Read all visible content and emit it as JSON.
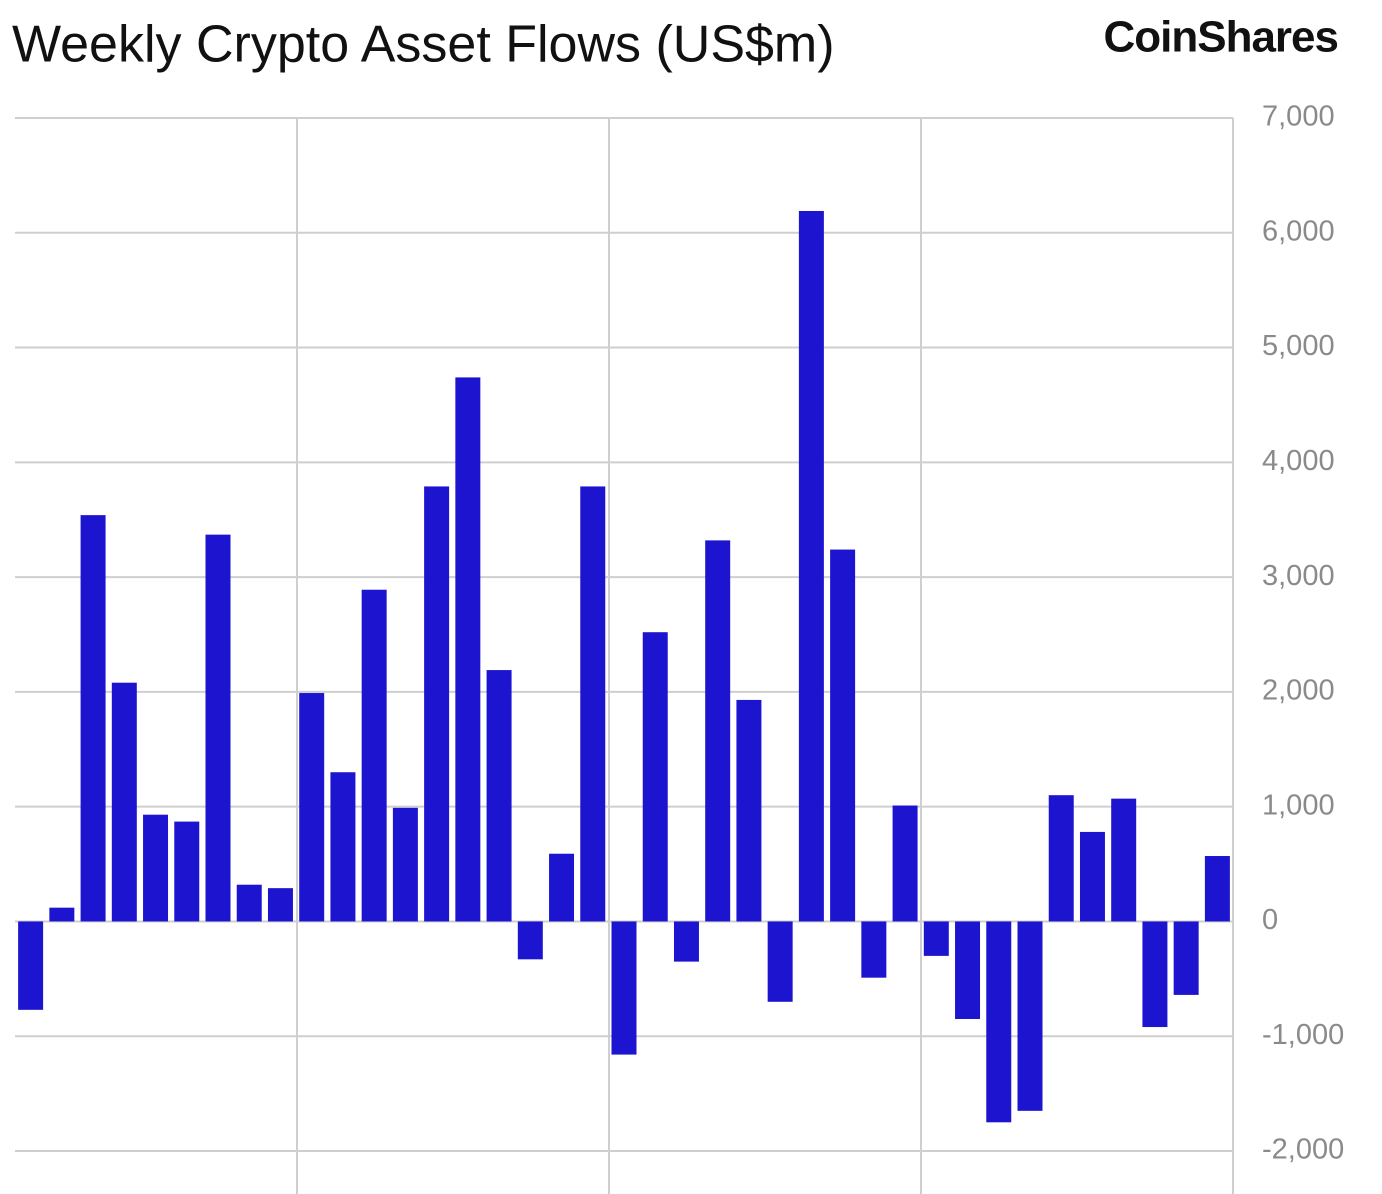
{
  "chart_data": {
    "type": "bar",
    "title": "Weekly Crypto Asset Flows (US$m)",
    "brand": "CoinShares",
    "categories": [
      null,
      null,
      null,
      null,
      null,
      null,
      null,
      null,
      null,
      null,
      null,
      null,
      null,
      null,
      null,
      null,
      null,
      null,
      null,
      null,
      null,
      null,
      null,
      null,
      null,
      null,
      null,
      null,
      null,
      null,
      null,
      null,
      null,
      null,
      null,
      null,
      null,
      null,
      null
    ],
    "values": [
      -770,
      120,
      3540,
      2080,
      930,
      870,
      3370,
      320,
      290,
      1990,
      1300,
      2890,
      990,
      3790,
      4740,
      2190,
      -330,
      590,
      3790,
      -1160,
      2520,
      -350,
      3320,
      1930,
      -700,
      6190,
      3240,
      -490,
      1010,
      -300,
      -850,
      -1750,
      -1650,
      1100,
      780,
      1070,
      -920,
      -640,
      570
    ],
    "color": "#1c14cf",
    "ylim": [
      -2000,
      7000
    ],
    "yticks": [
      {
        "value": -2000,
        "label": "-2,000"
      },
      {
        "value": -1000,
        "label": "-1,000"
      },
      0,
      {
        "value": 1000,
        "label": "1,000"
      },
      {
        "value": 2000,
        "label": "2,000"
      },
      {
        "value": 3000,
        "label": "3,000"
      },
      {
        "value": 4000,
        "label": "4,000"
      },
      {
        "value": 5000,
        "label": "5,000"
      },
      {
        "value": 6000,
        "label": "6,000"
      },
      {
        "value": 7000,
        "label": "7,000"
      }
    ],
    "grid": true
  }
}
